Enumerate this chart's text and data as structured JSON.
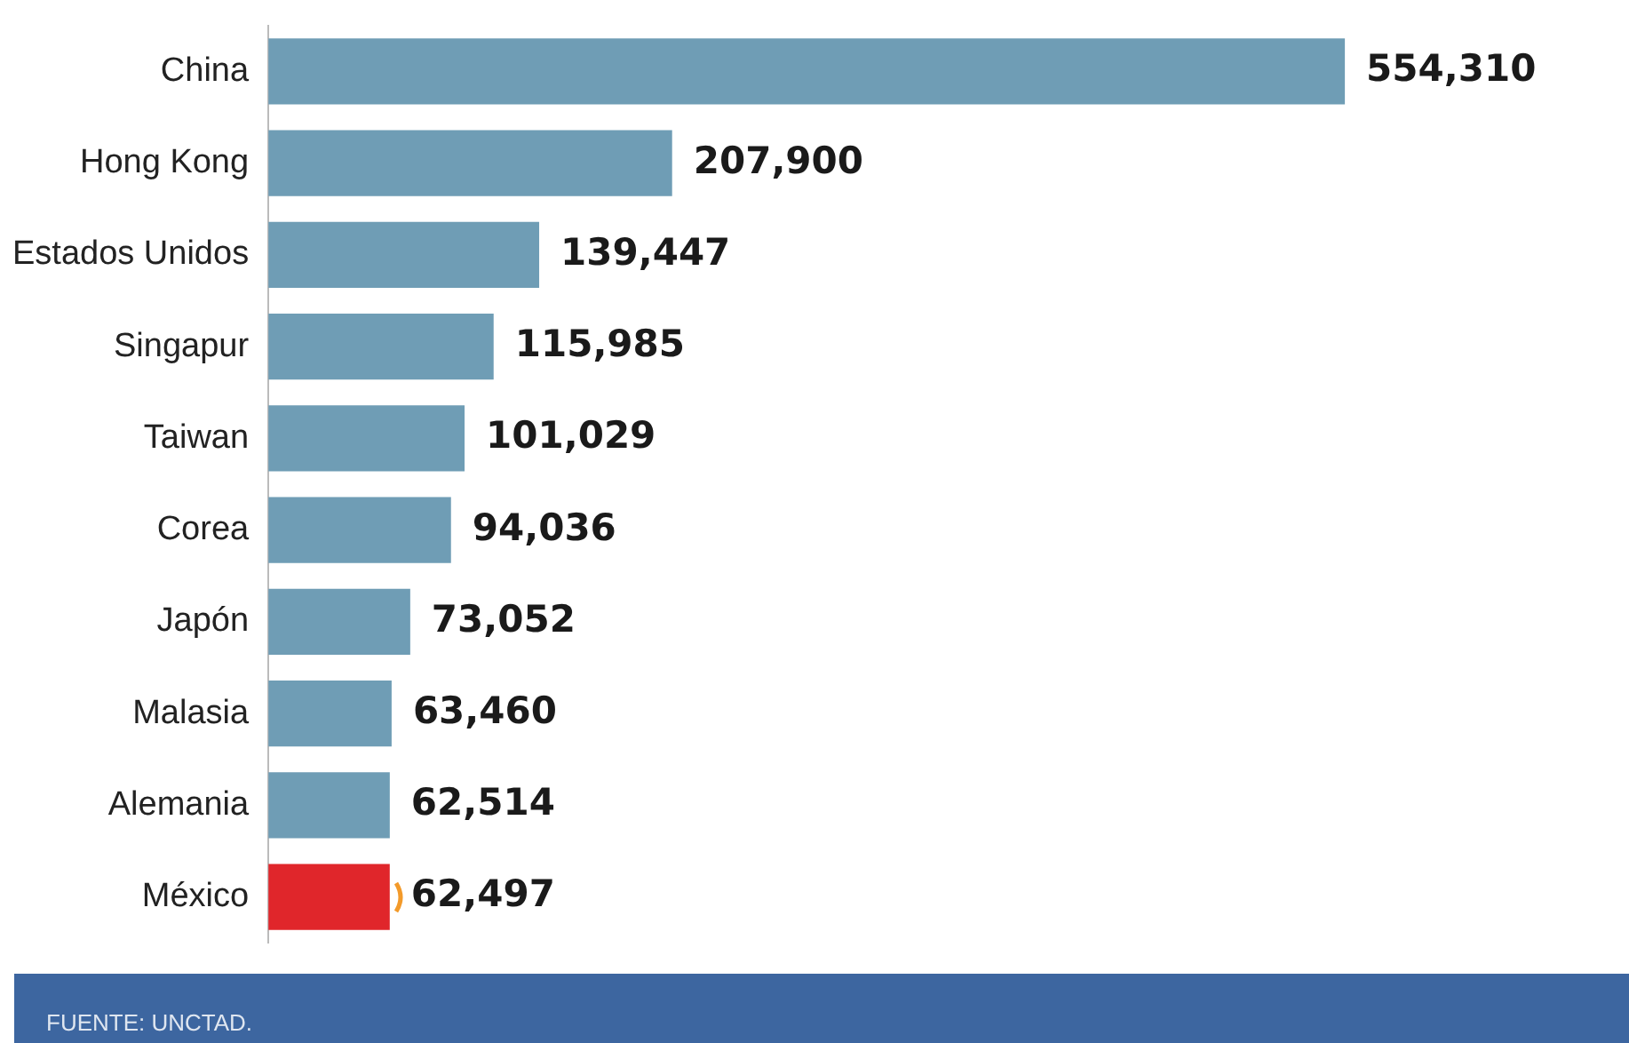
{
  "chart_data": {
    "type": "bar",
    "orientation": "horizontal",
    "categories": [
      "China",
      "Hong Kong",
      "Estados Unidos",
      "Singapur",
      "Taiwan",
      "Corea",
      "Japón",
      "Malasia",
      "Alemania",
      "México"
    ],
    "values": [
      554310,
      207900,
      139447,
      115985,
      101029,
      94036,
      73052,
      63460,
      62514,
      62497
    ],
    "colors": [
      "#6f9db5",
      "#6f9db5",
      "#6f9db5",
      "#6f9db5",
      "#6f9db5",
      "#6f9db5",
      "#6f9db5",
      "#6f9db5",
      "#6f9db5",
      "#e0262b"
    ],
    "value_labels": [
      "554,310",
      "207,900",
      "139,447",
      "115,985",
      "101,029",
      "94,036",
      "73,052",
      "63,460",
      "62,514",
      "62,497"
    ],
    "annotations": [
      "FUENTE: UNCTAD."
    ]
  }
}
